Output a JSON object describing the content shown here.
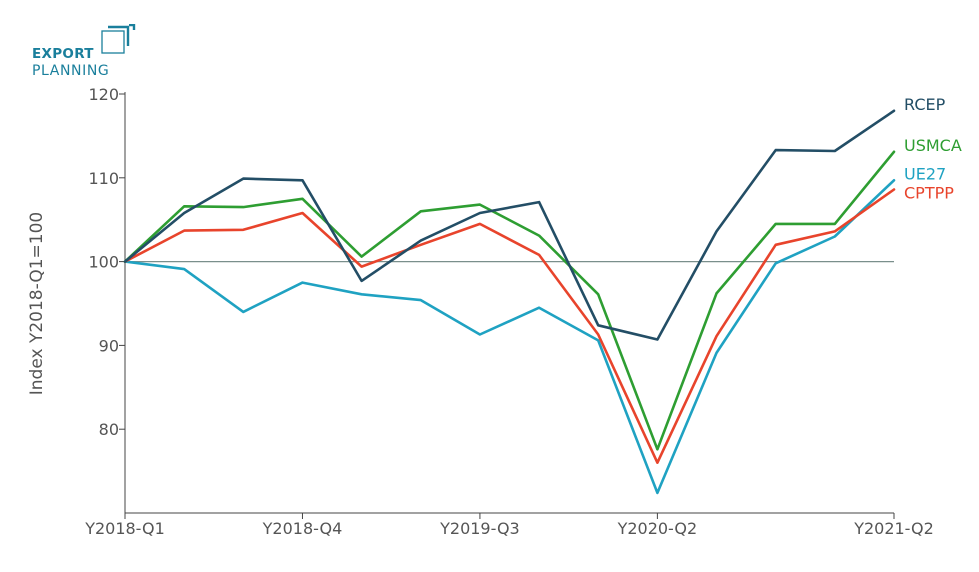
{
  "logo": {
    "line1": "EXPORT",
    "line2": "PLANNING"
  },
  "chart_data": {
    "type": "line",
    "title": "",
    "xlabel": "",
    "ylabel": "Index Y2018-Q1=100",
    "ylim": [
      70,
      120
    ],
    "yticks": [
      80,
      90,
      100,
      110,
      120
    ],
    "x": [
      "Y2018-Q1",
      "Y2018-Q2",
      "Y2018-Q3",
      "Y2018-Q4",
      "Y2019-Q1",
      "Y2019-Q2",
      "Y2019-Q3",
      "Y2019-Q4",
      "Y2020-Q1",
      "Y2020-Q2",
      "Y2020-Q3",
      "Y2020-Q4",
      "Y2021-Q1",
      "Y2021-Q2"
    ],
    "xtick_labels": [
      "Y2018-Q1",
      "Y2018-Q4",
      "Y2019-Q3",
      "Y2020-Q2",
      "Y2021-Q2"
    ],
    "reference_line": 100,
    "legend": "labels at line ends (right)",
    "grid": false,
    "series": [
      {
        "name": "RCEP",
        "color": "#234e66",
        "values": [
          100,
          105.8,
          109.9,
          109.7,
          97.7,
          102.5,
          105.8,
          107.1,
          92.4,
          90.7,
          103.6,
          113.3,
          113.2,
          118.0
        ]
      },
      {
        "name": "USMCA",
        "color": "#2e9e32",
        "values": [
          100,
          106.6,
          106.5,
          107.5,
          100.6,
          106.0,
          106.8,
          103.1,
          96.1,
          77.6,
          96.2,
          104.5,
          104.5,
          113.1
        ]
      },
      {
        "name": "UE27",
        "color": "#1fa2c2",
        "values": [
          100,
          99.1,
          94.0,
          97.5,
          96.1,
          95.4,
          91.3,
          94.5,
          90.6,
          72.4,
          89.1,
          99.8,
          103.0,
          109.7
        ]
      },
      {
        "name": "CPTPP",
        "color": "#e8442c",
        "values": [
          100,
          103.7,
          103.8,
          105.8,
          99.4,
          102.0,
          104.5,
          100.8,
          91.3,
          76.0,
          91.1,
          102.0,
          103.6,
          108.6
        ]
      }
    ]
  }
}
